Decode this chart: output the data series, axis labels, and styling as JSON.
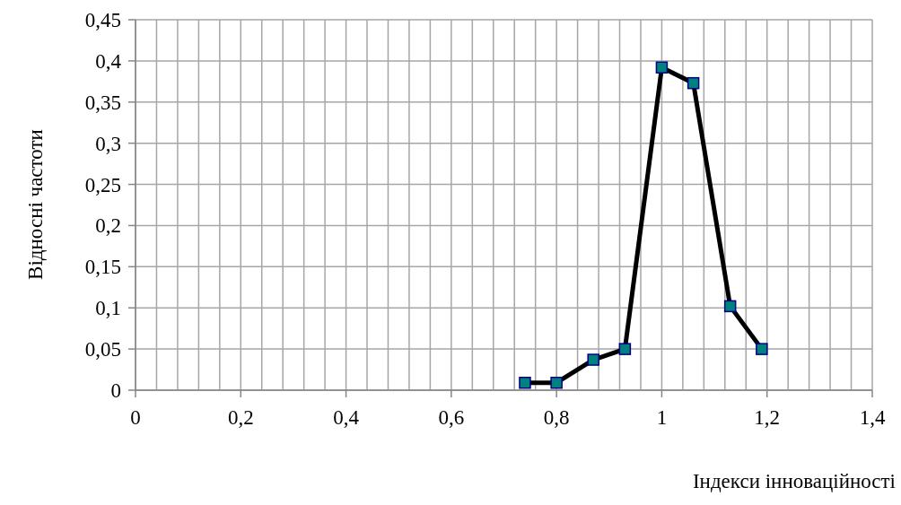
{
  "chart_data": {
    "type": "line",
    "xlabel": "Індекси інноваційності",
    "ylabel": "Відносні частоти",
    "x": [
      0.74,
      0.8,
      0.87,
      0.93,
      1.0,
      1.06,
      1.13,
      1.19
    ],
    "series": [
      {
        "color": "#000000",
        "values": [
          0.009,
          0.009,
          0.037,
          0.05,
          0.392,
          0.373,
          0.102,
          0.05
        ]
      }
    ],
    "xlim": [
      0,
      1.4
    ],
    "xticks": [
      0,
      {
        "value": 0.04,
        "label": null
      },
      {
        "value": 0.08,
        "label": null
      },
      {
        "value": 0.12,
        "label": null
      },
      {
        "value": 0.16,
        "label": null
      },
      {
        "value": 0.2,
        "label": "0,2"
      },
      {
        "value": 0.24,
        "label": null
      },
      {
        "value": 0.28,
        "label": null
      },
      {
        "value": 0.32,
        "label": null
      },
      {
        "value": 0.36,
        "label": null
      },
      {
        "value": 0.4,
        "label": "0,4"
      },
      {
        "value": 0.44,
        "label": null
      },
      {
        "value": 0.48,
        "label": null
      },
      {
        "value": 0.52,
        "label": null
      },
      {
        "value": 0.56,
        "label": null
      },
      {
        "value": 0.6,
        "label": "0,6"
      },
      {
        "value": 0.64,
        "label": null
      },
      {
        "value": 0.68,
        "label": null
      },
      {
        "value": 0.72,
        "label": null
      },
      {
        "value": 0.76,
        "label": null
      },
      {
        "value": 0.8,
        "label": "0,8"
      },
      {
        "value": 0.84,
        "label": null
      },
      {
        "value": 0.88,
        "label": null
      },
      {
        "value": 0.92,
        "label": null
      },
      {
        "value": 0.96,
        "label": null
      },
      1,
      {
        "value": 1.04,
        "label": null
      },
      {
        "value": 1.08,
        "label": null
      },
      {
        "value": 1.12,
        "label": null
      },
      {
        "value": 1.16,
        "label": null
      },
      {
        "value": 1.2,
        "label": "1,2"
      },
      {
        "value": 1.24,
        "label": null
      },
      {
        "value": 1.28,
        "label": null
      },
      {
        "value": 1.32,
        "label": null
      },
      {
        "value": 1.36,
        "label": null
      },
      {
        "value": 1.4,
        "label": "1,4"
      }
    ],
    "ylim": [
      0,
      0.45
    ],
    "yticks": [
      0,
      {
        "value": 0.05,
        "label": "0,05"
      },
      {
        "value": 0.1,
        "label": "0,1"
      },
      {
        "value": 0.15,
        "label": "0,15"
      },
      {
        "value": 0.2,
        "label": "0,2"
      },
      {
        "value": 0.25,
        "label": "0,25"
      },
      {
        "value": 0.3,
        "label": "0,3"
      },
      {
        "value": 0.35,
        "label": "0,35"
      },
      {
        "value": 0.4,
        "label": "0,4"
      },
      {
        "value": 0.45,
        "label": "0,45"
      }
    ],
    "grid": true,
    "marker": "square",
    "line_style": "solid",
    "legend": false
  }
}
